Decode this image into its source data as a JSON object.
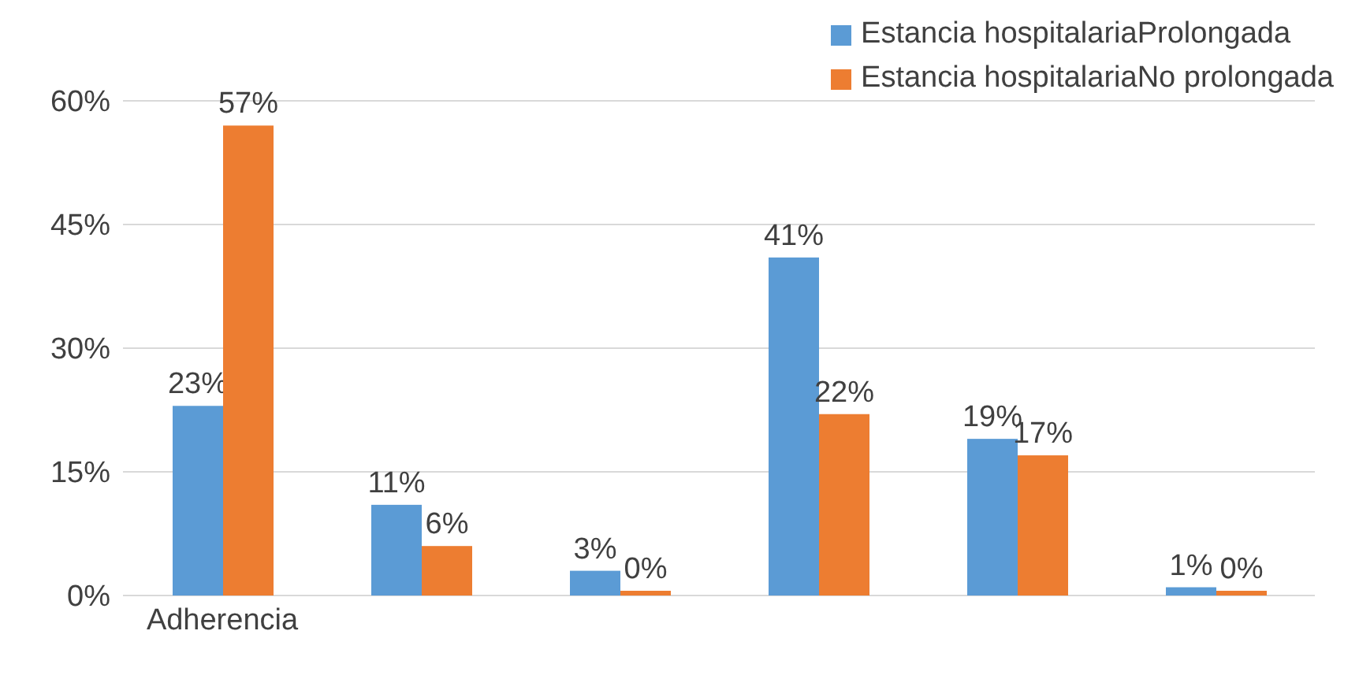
{
  "chart_data": {
    "type": "bar",
    "categories": [
      "Adherencia",
      null,
      null,
      null,
      null,
      null
    ],
    "series": [
      {
        "name": "Estancia hospitalariaProlongada",
        "color": "#5b9bd5",
        "values": [
          23,
          11,
          3,
          41,
          19,
          1
        ],
        "value_labels": [
          "23%",
          "11%",
          "3%",
          "41%",
          "19%",
          "1%"
        ]
      },
      {
        "name": "Estancia hospitalariaNo prolongada",
        "color": "#ed7d31",
        "values": [
          57,
          6,
          0,
          22,
          17,
          0
        ],
        "value_labels": [
          "57%",
          "6%",
          "0%",
          "22%",
          "17%",
          "0%"
        ]
      }
    ],
    "ylim": [
      0,
      60
    ],
    "yticks": [
      {
        "value": 0,
        "label": "0%"
      },
      {
        "value": 15,
        "label": "15%"
      },
      {
        "value": 30,
        "label": "30%"
      },
      {
        "value": 45,
        "label": "45%"
      },
      {
        "value": 60,
        "label": "60%"
      }
    ],
    "grid": "y",
    "legend": "top right"
  }
}
